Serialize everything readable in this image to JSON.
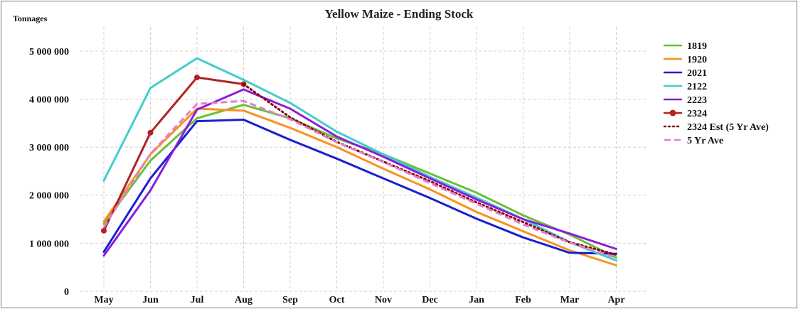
{
  "chart_data": {
    "type": "line",
    "title": "Yellow Maize - Ending Stock",
    "ylabel": "Tonnages",
    "xlabel": "",
    "categories": [
      "May",
      "Jun",
      "Jul",
      "Aug",
      "Sep",
      "Oct",
      "Nov",
      "Dec",
      "Jan",
      "Feb",
      "Mar",
      "Apr"
    ],
    "ylim": [
      0,
      5500000
    ],
    "yticks": [
      0,
      1000000,
      2000000,
      3000000,
      4000000,
      5000000
    ],
    "ytick_labels": [
      "0",
      "1 000 000",
      "2 000 000",
      "3 000 000",
      "4 000 000",
      "5 000 000"
    ],
    "grid": true,
    "legend_position": "right",
    "series": [
      {
        "name": "1819",
        "color": "#6cbf3a",
        "style": "solid",
        "values": [
          1400000,
          2720000,
          3600000,
          3880000,
          3600000,
          3180000,
          2850000,
          2450000,
          2050000,
          1580000,
          1180000,
          700000
        ]
      },
      {
        "name": "1920",
        "color": "#f7931e",
        "style": "solid",
        "values": [
          1450000,
          2850000,
          3800000,
          3760000,
          3400000,
          3000000,
          2550000,
          2120000,
          1650000,
          1250000,
          850000,
          540000
        ]
      },
      {
        "name": "2021",
        "color": "#1a1fcf",
        "style": "solid",
        "values": [
          820000,
          2350000,
          3540000,
          3570000,
          3150000,
          2760000,
          2350000,
          1940000,
          1510000,
          1120000,
          800000,
          780000
        ]
      },
      {
        "name": "2122",
        "color": "#44cccc",
        "style": "solid",
        "values": [
          2300000,
          4230000,
          4850000,
          4400000,
          3920000,
          3320000,
          2850000,
          2380000,
          1950000,
          1500000,
          1020000,
          640000
        ]
      },
      {
        "name": "2223",
        "color": "#8a1ee0",
        "style": "solid",
        "values": [
          740000,
          2100000,
          3780000,
          4200000,
          3800000,
          3220000,
          2800000,
          2350000,
          1910000,
          1500000,
          1200000,
          880000
        ]
      },
      {
        "name": "2324",
        "color": "#b22222",
        "style": "solid-markers",
        "values": [
          1260000,
          3300000,
          4450000,
          4310000,
          null,
          null,
          null,
          null,
          null,
          null,
          null,
          null
        ]
      },
      {
        "name": "2324 Est (5 Yr Ave)",
        "color": "#8b0000",
        "style": "dotted",
        "values": [
          null,
          null,
          null,
          4310000,
          3620000,
          3110000,
          2700000,
          2290000,
          1850000,
          1440000,
          1020000,
          760000
        ]
      },
      {
        "name": "5 Yr Ave",
        "color": "#e07fd0",
        "style": "dashed",
        "values": [
          1330000,
          2860000,
          3900000,
          3960000,
          3580000,
          3100000,
          2690000,
          2250000,
          1820000,
          1390000,
          1010000,
          700000
        ]
      }
    ]
  }
}
